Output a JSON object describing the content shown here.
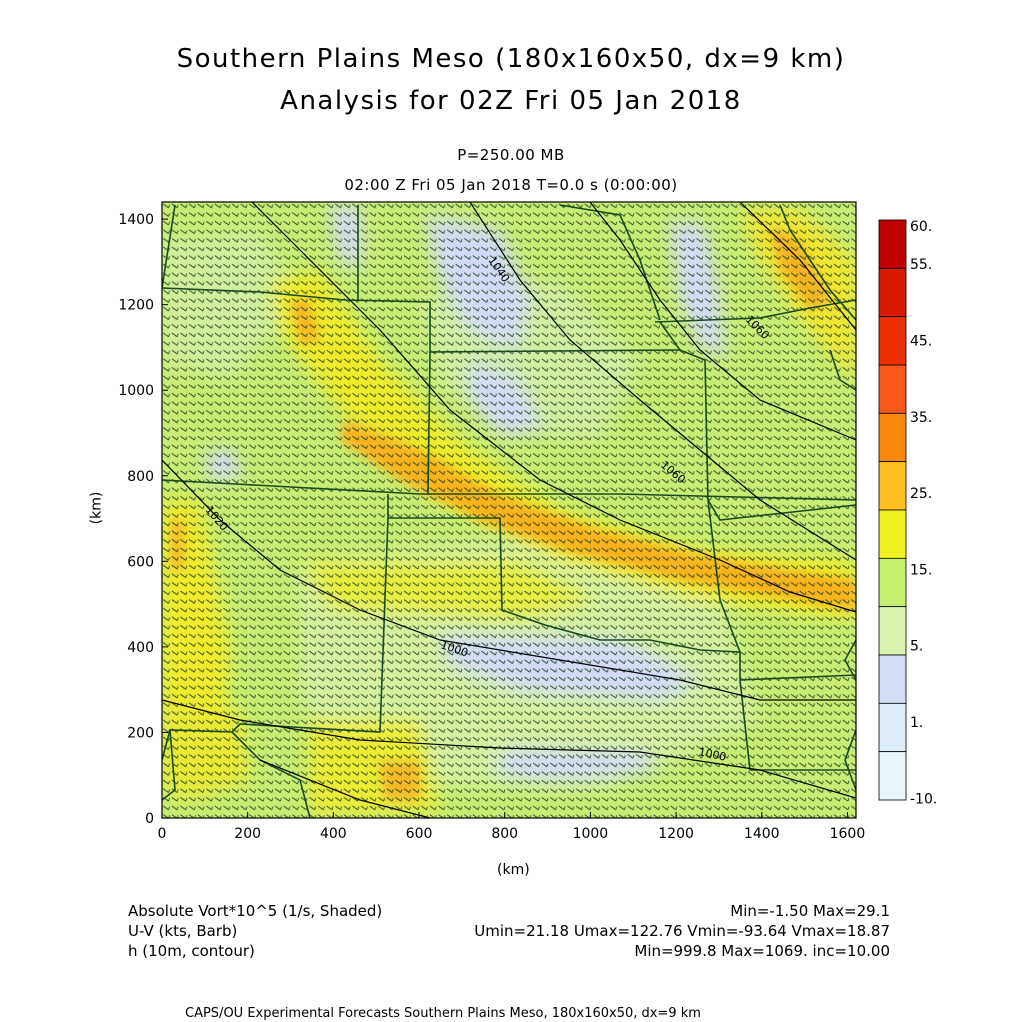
{
  "title_line1": "Southern Plains Meso (180x160x50, dx=9 km)",
  "title_line2": "Analysis for 02Z Fri 05 Jan 2018",
  "pressure_level": "P=250.00 MB",
  "valid_time": "02:00 Z Fri 05 Jan 2018    T=0.0 s (0:00:00)",
  "y_axis_label": "(km)",
  "x_axis_label": "(km)",
  "x_ticks": [
    "0",
    "200",
    "400",
    "600",
    "800",
    "1000",
    "1200",
    "1400",
    "1600"
  ],
  "y_ticks": [
    "0",
    "200",
    "400",
    "600",
    "800",
    "1000",
    "1200",
    "1400"
  ],
  "colorbar_labels": [
    "60.",
    "55.",
    "45.",
    "35.",
    "25.",
    "15.",
    "5.",
    "1.",
    "-10."
  ],
  "colorbar_colors": [
    "#c00000",
    "#d81a00",
    "#ee3000",
    "#f85818",
    "#f8880e",
    "#fcc020",
    "#f2f020",
    "#c8f070",
    "#d8f4b0",
    "#d4dcf8",
    "#dcecf8",
    "#e8f6fc"
  ],
  "contour_labels": [
    "1040",
    "1060",
    "1060",
    "1040",
    "1020",
    "1020",
    "1000",
    "1000",
    "1000"
  ],
  "legend": {
    "field1": "Absolute Vort*10^5 (1/s, Shaded)",
    "field1_stats": "Min=-1.50 Max=29.1",
    "field2": "U-V (kts, Barb)",
    "field2_stats": "Umin=21.18 Umax=122.76 Vmin=-93.64 Vmax=18.87",
    "field3": "h (10m, contour)",
    "field3_stats": "Min=999.8 Max=1069. inc=10.00"
  },
  "footer": "CAPS/OU Experimental Forecasts  Southern Plains Meso, 180x160x50, dx=9 km",
  "chart_data": {
    "type": "heatmap",
    "x_range_km": [
      0,
      1620
    ],
    "y_range_km": [
      0,
      1440
    ],
    "shaded_field": "Absolute Vort*10^5 (1/s, Shaded)",
    "shaded_min": -1.5,
    "shaded_max": 29.1,
    "contour_field": "h (10m, contour)",
    "contour_min": 999.8,
    "contour_max": 1069,
    "contour_inc": 10.0,
    "wind_field": "U-V (kts, Barb)",
    "umin": 21.18,
    "umax": 122.76,
    "vmin": -93.64,
    "vmax": 18.87
  }
}
